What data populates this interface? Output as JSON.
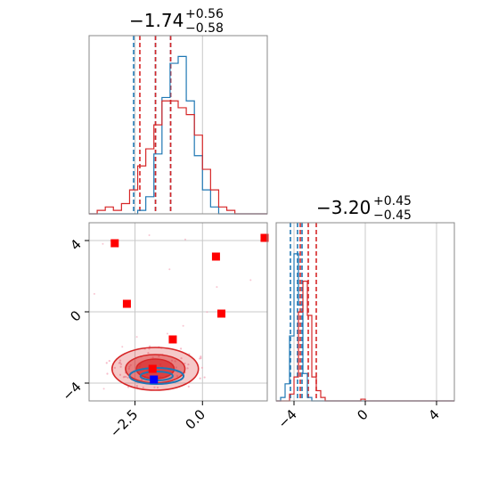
{
  "colors": {
    "blue": "#1f77b4",
    "red": "#d62728",
    "red_marker": "#ff0000",
    "blue_marker": "#0000ff",
    "grid": "#c8c8c8",
    "spine": "#888888",
    "pink": "#f4a0b4"
  },
  "chart_data": [
    {
      "type": "histogram",
      "panel": "top-left",
      "title_value": "−1.74",
      "title_plus": "+0.56",
      "title_minus": "−0.58",
      "xlim": [
        -4.2,
        2.4
      ],
      "grid": true,
      "bin_edges": [
        -4.2,
        -3.9,
        -3.6,
        -3.3,
        -3.0,
        -2.7,
        -2.4,
        -2.1,
        -1.8,
        -1.5,
        -1.2,
        -0.9,
        -0.6,
        -0.3,
        0.0,
        0.3,
        0.6,
        0.9,
        1.2,
        1.5,
        1.8,
        2.1,
        2.4
      ],
      "series": [
        {
          "color_key": "blue",
          "counts": [
            0,
            0,
            0,
            0,
            0,
            0,
            0.02,
            0.1,
            0.35,
            0.68,
            0.88,
            0.92,
            0.66,
            0.34,
            0.14,
            0.04,
            0,
            0,
            0,
            0,
            0,
            0
          ],
          "quantile_lines": [
            -2.55,
            -1.74,
            -1.18
          ]
        },
        {
          "color_key": "red",
          "counts": [
            0,
            0.02,
            0.04,
            0.02,
            0.06,
            0.14,
            0.28,
            0.38,
            0.52,
            0.66,
            0.66,
            0.62,
            0.58,
            0.46,
            0.26,
            0.14,
            0.04,
            0.02,
            0,
            0,
            0,
            0
          ],
          "quantile_lines": [
            -2.32,
            -1.74,
            -1.18
          ]
        }
      ]
    },
    {
      "type": "scatter-contour",
      "panel": "bottom-left",
      "xlim": [
        -4.2,
        2.4
      ],
      "ylim": [
        -5.0,
        5.0
      ],
      "xticks": [
        "−2.5",
        "0.0"
      ],
      "xtick_values": [
        -2.5,
        0.0
      ],
      "yticks": [
        "4",
        "0",
        "−4"
      ],
      "ytick_values": [
        4,
        0,
        -4
      ],
      "grid": true,
      "red_contour_center": [
        -1.75,
        -3.2
      ],
      "red_contour_radii": [
        [
          0.7,
          0.55
        ],
        [
          1.1,
          0.8
        ],
        [
          1.6,
          1.2
        ]
      ],
      "blue_contour_center": [
        -1.7,
        -3.6
      ],
      "blue_contour_radii": [
        [
          0.6,
          0.25
        ],
        [
          1.0,
          0.45
        ]
      ],
      "red_markers": [
        [
          -3.25,
          3.85
        ],
        [
          -2.8,
          0.45
        ],
        [
          0.5,
          3.1
        ],
        [
          0.7,
          -0.1
        ],
        [
          -1.1,
          -1.55
        ],
        [
          -1.85,
          -3.2
        ],
        [
          2.3,
          4.15
        ]
      ],
      "blue_markers": [
        [
          -1.8,
          -3.8
        ]
      ]
    },
    {
      "type": "histogram",
      "panel": "bottom-right",
      "title_value": "−3.20",
      "title_plus": "+0.45",
      "title_minus": "−0.45",
      "xlim": [
        -5.0,
        5.0
      ],
      "xticks": [
        "−4",
        "0",
        "4"
      ],
      "xtick_values": [
        -4,
        0,
        4
      ],
      "grid": true,
      "bin_edges": [
        -5.0,
        -4.75,
        -4.5,
        -4.25,
        -4.0,
        -3.75,
        -3.5,
        -3.25,
        -3.0,
        -2.75,
        -2.5,
        -2.25,
        -2.0,
        -1.75,
        -1.5,
        -1.25,
        -1.0,
        -0.75,
        -0.5,
        -0.25,
        0.0,
        0.25,
        0.5,
        0.75,
        1.0,
        1.25,
        1.5,
        1.75,
        2.0,
        2.25,
        2.5,
        2.75,
        3.0,
        3.25,
        3.5,
        3.75,
        4.0,
        4.25,
        4.5,
        4.75,
        5.0
      ],
      "series": [
        {
          "color_key": "blue",
          "counts": [
            0,
            0.02,
            0.1,
            0.38,
            0.86,
            0.56,
            0.16,
            0.02,
            0,
            0,
            0,
            0,
            0,
            0,
            0,
            0,
            0,
            0,
            0,
            0,
            0,
            0,
            0,
            0,
            0,
            0,
            0,
            0,
            0,
            0,
            0,
            0,
            0,
            0,
            0,
            0,
            0,
            0,
            0,
            0
          ],
          "quantile_lines": [
            -4.2,
            -3.8,
            -3.55
          ]
        },
        {
          "color_key": "red",
          "counts": [
            0,
            0,
            0,
            0.04,
            0.14,
            0.52,
            0.7,
            0.5,
            0.14,
            0.06,
            0.02,
            0,
            0,
            0,
            0,
            0,
            0,
            0,
            0,
            0.01,
            0,
            0,
            0,
            0,
            0,
            0,
            0,
            0,
            0,
            0,
            0,
            0,
            0,
            0,
            0,
            0,
            0,
            0,
            0,
            0
          ],
          "quantile_lines": [
            -3.65,
            -3.2,
            -2.75
          ]
        }
      ]
    }
  ]
}
